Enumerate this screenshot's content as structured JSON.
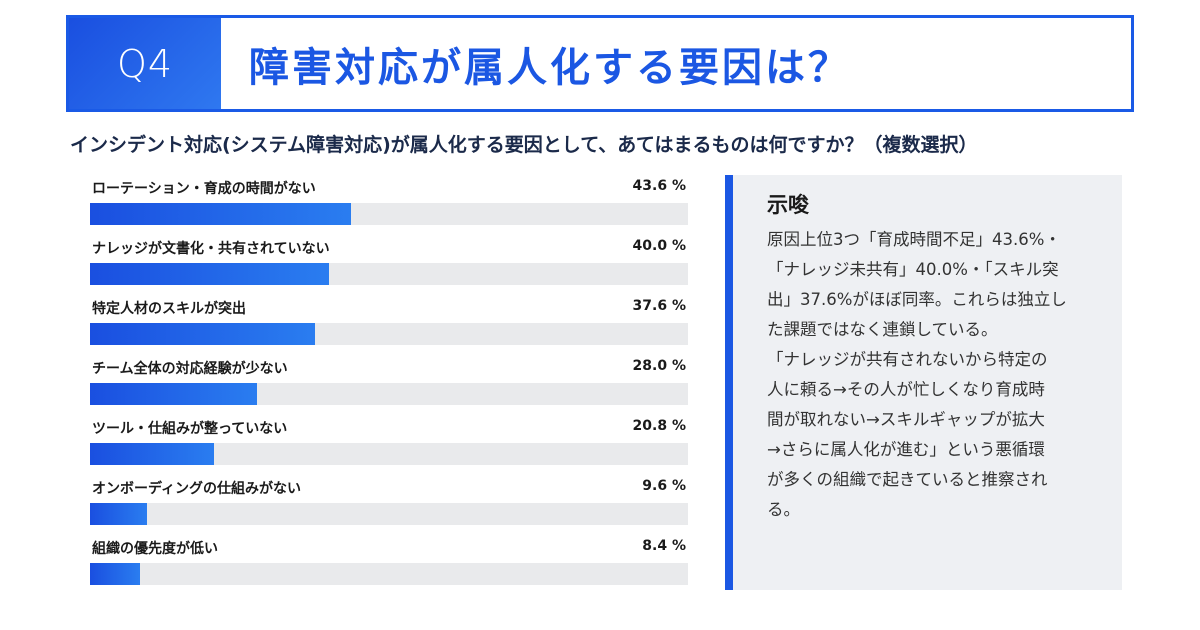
{
  "header": {
    "badge": "Q4",
    "title": "障害対応が属人化する要因は？"
  },
  "question": "インシデント対応(システム障害対応)が属人化する要因として、あてはまるものは何ですか？（複数選択）",
  "chart_data": {
    "type": "bar",
    "orientation": "horizontal",
    "categories": [
      "ローテーション・育成の時間がない",
      "ナレッジが文書化・共有されていない",
      "特定人材のスキルが突出",
      "チーム全体の対応経験が少ない",
      "ツール・仕組みが整っていない",
      "オンボーディングの仕組みがない",
      "組織の優先度が低い"
    ],
    "values": [
      43.6,
      40.0,
      37.6,
      28.0,
      20.8,
      9.6,
      8.4
    ],
    "value_labels": [
      "43.6 %",
      "40.0 %",
      "37.6 %",
      "28.0 %",
      "20.8 %",
      "9.6 %",
      "8.4 %"
    ],
    "xlim": [
      0,
      100
    ],
    "colors": {
      "bar": "#1b57e3",
      "track": "#e9eaec"
    }
  },
  "insight": {
    "title": "示唆",
    "lines": [
      "原因上位3つ「育成時間不足」43.6%・",
      "「ナレッジ未共有」40.0%・「スキル突",
      "出」37.6%がほぼ同率。これらは独立し",
      "た課題ではなく連鎖している。",
      "「ナレッジが共有されないから特定の",
      "人に頼る→その人が忙しくなり育成時",
      "間が取れない→スキルギャップが拡大",
      "→さらに属人化が進む」という悪循環",
      "が多くの組織で起きていると推察され",
      "る。"
    ]
  },
  "colors": {
    "accent": "#1b57e3",
    "panel": "#eef0f3"
  }
}
